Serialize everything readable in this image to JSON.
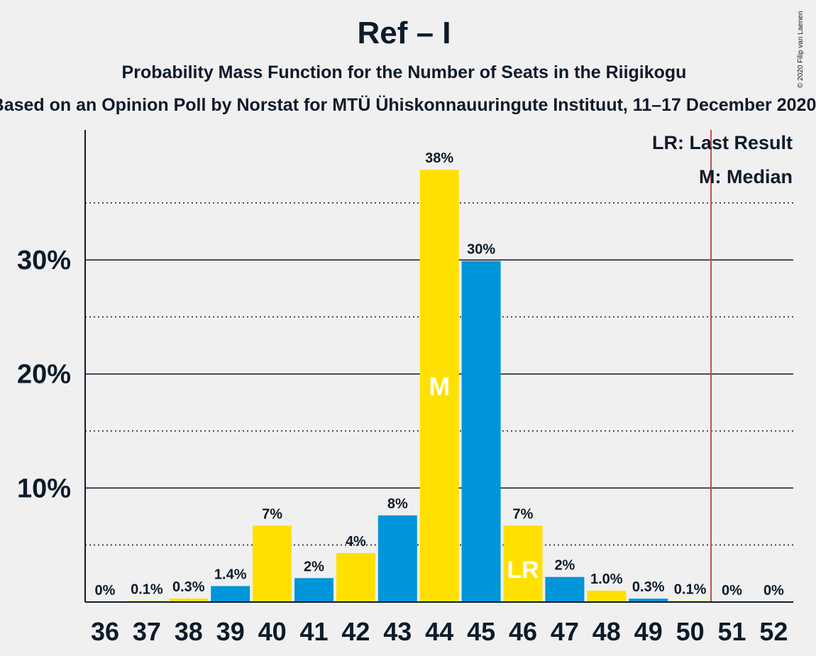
{
  "title": "Ref – I",
  "subtitle": "Probability Mass Function for the Number of Seats in the Riigikogu",
  "source": "Based on an Opinion Poll by Norstat for MTÜ Ühiskonnauuringute Instituut, 11–17 December 2020",
  "copyright": "© 2020 Filip van Laenen",
  "colors": {
    "blue": "#0095d9",
    "yellow": "#ffe000",
    "last_result_line": "#c0504d",
    "text": "#0d1b2a",
    "background": "#f0f0f0"
  },
  "chart_data": {
    "type": "bar",
    "categories": [
      "36",
      "37",
      "38",
      "39",
      "40",
      "41",
      "42",
      "43",
      "44",
      "45",
      "46",
      "47",
      "48",
      "49",
      "50",
      "51",
      "52"
    ],
    "values": [
      0,
      0.1,
      0.3,
      1.4,
      6.7,
      2.1,
      4.3,
      7.6,
      37.9,
      29.9,
      6.7,
      2.2,
      1.0,
      0.3,
      0.1,
      0,
      0
    ],
    "value_labels": [
      "0%",
      "0.1%",
      "0.3%",
      "1.4%",
      "7%",
      "2%",
      "4%",
      "8%",
      "38%",
      "30%",
      "7%",
      "2%",
      "1.0%",
      "0.3%",
      "0.1%",
      "0%",
      "0%"
    ],
    "bar_colors": [
      "blue",
      "yellow",
      "yellow",
      "blue",
      "yellow",
      "blue",
      "yellow",
      "blue",
      "yellow",
      "blue",
      "yellow",
      "blue",
      "yellow",
      "blue",
      "yellow",
      "blue",
      "yellow"
    ],
    "ylim": [
      0,
      41.4
    ],
    "yticks": [
      10,
      20,
      30
    ],
    "ytick_labels": [
      "10%",
      "20%",
      "30%"
    ],
    "minor_gridlines": [
      5,
      15,
      25,
      35
    ],
    "median_seat": "44",
    "median_marker": "M",
    "last_result_seat": "46",
    "last_result_marker": "LR",
    "majority_line_after_seat": "50",
    "legend": [
      "LR: Last Result",
      "M: Median"
    ],
    "legend_position": "top-right"
  }
}
